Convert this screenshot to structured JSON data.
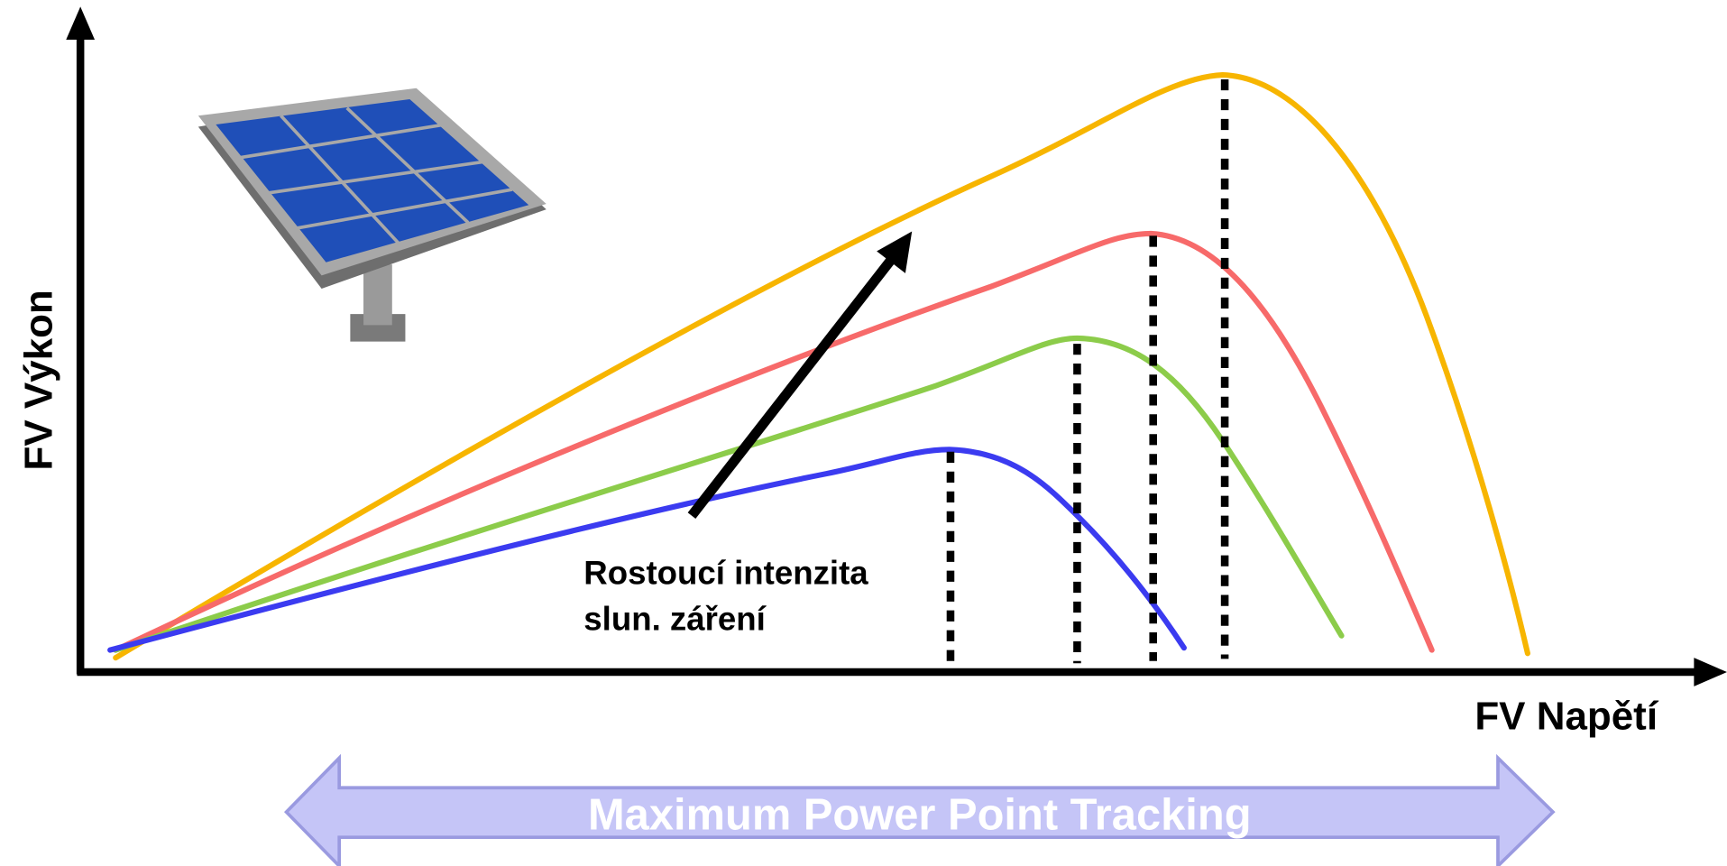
{
  "axes": {
    "y_label": "FV Výkon",
    "x_label": "FV Napětí"
  },
  "annotation": {
    "lines": [
      "Rostoucí intenzita",
      "slun. záření"
    ]
  },
  "banner": {
    "text": "Maximum Power Point Tracking"
  }
}
